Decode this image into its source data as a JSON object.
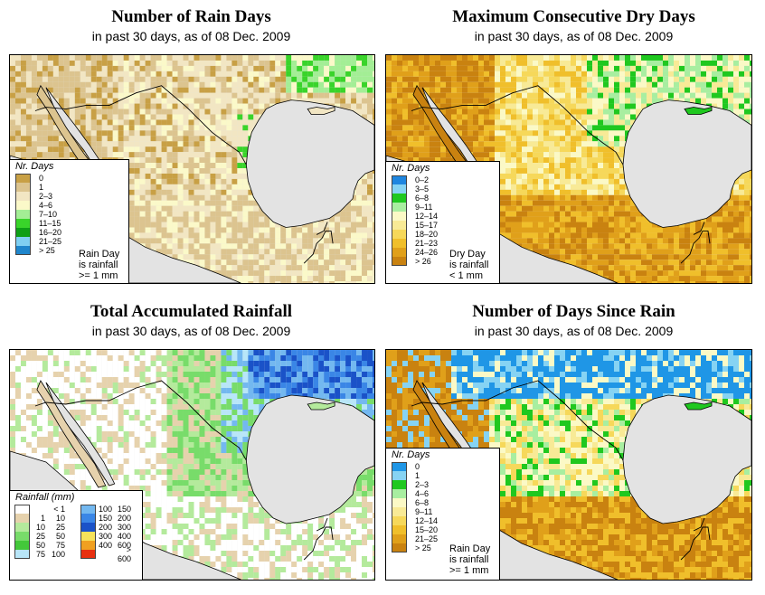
{
  "panels": [
    {
      "title": "Number of Rain Days",
      "subtitle": "in past 30 days, as of  08 Dec. 2009",
      "legend_title": "Nr. Days",
      "legend": [
        {
          "label": "0",
          "color": "#c8a045"
        },
        {
          "label": "1",
          "color": "#dcc48f"
        },
        {
          "label": "2–3",
          "color": "#f2e6c3"
        },
        {
          "label": "4–6",
          "color": "#fbf9c9"
        },
        {
          "label": "7–10",
          "color": "#a3ee95"
        },
        {
          "label": "11–15",
          "color": "#39d42a"
        },
        {
          "label": "16–20",
          "color": "#0e9f16"
        },
        {
          "label": "21–25",
          "color": "#7fd0f2"
        },
        {
          "label": "> 25",
          "color": "#1f86cc"
        }
      ],
      "note": [
        "Rain Day",
        "is rainfall",
        ">= 1 mm"
      ]
    },
    {
      "title": "Maximum Consecutive Dry Days",
      "subtitle": "in past 30 days, as of  08 Dec. 2009",
      "legend_title": "Nr. Days",
      "legend": [
        {
          "label": "0–2",
          "color": "#1f86e0"
        },
        {
          "label": "3–5",
          "color": "#86d3f3"
        },
        {
          "label": "6–8",
          "color": "#1fc81f"
        },
        {
          "label": "9–11",
          "color": "#a8eea0"
        },
        {
          "label": "12–14",
          "color": "#fbf9c6"
        },
        {
          "label": "15–17",
          "color": "#f8ea96"
        },
        {
          "label": "18–20",
          "color": "#f6d85a"
        },
        {
          "label": "21–23",
          "color": "#f0bf2b"
        },
        {
          "label": "24–26",
          "color": "#e0a01a"
        },
        {
          "label": "> 26",
          "color": "#c98210"
        }
      ],
      "note": [
        "Dry Day",
        "is rainfall",
        "< 1 mm"
      ]
    },
    {
      "title": "Total Accumulated Rainfall",
      "subtitle": "in past 30 days, as of  08 Dec. 2009",
      "legend_title": "Rainfall (mm)",
      "legend": [
        {
          "lo": "",
          "hi": "< 1",
          "color": "#ffffff"
        },
        {
          "lo": "1",
          "hi": "10",
          "color": "#e6d2ad"
        },
        {
          "lo": "10",
          "hi": "25",
          "color": "#b4ea9c"
        },
        {
          "lo": "25",
          "hi": "50",
          "color": "#78dc6a"
        },
        {
          "lo": "50",
          "hi": "75",
          "color": "#43c83a"
        },
        {
          "lo": "75",
          "hi": "100",
          "color": "#b8e6f8"
        },
        {
          "lo": "100",
          "hi": "150",
          "color": "#73b8f0"
        },
        {
          "lo": "150",
          "hi": "200",
          "color": "#3a86e6"
        },
        {
          "lo": "200",
          "hi": "300",
          "color": "#1a52c8"
        },
        {
          "lo": "300",
          "hi": "400",
          "color": "#f6e25a"
        },
        {
          "lo": "400",
          "hi": "600",
          "color": "#f0a020"
        },
        {
          "lo": "",
          "hi": "> 600",
          "color": "#e83010"
        }
      ]
    },
    {
      "title": "Number of Days Since Rain",
      "subtitle": "in past 30 days, as of  08 Dec. 2009",
      "legend_title": "Nr. Days",
      "legend": [
        {
          "label": "0",
          "color": "#1f96e6"
        },
        {
          "label": "1",
          "color": "#86d3f3"
        },
        {
          "label": "2–3",
          "color": "#1fc81f"
        },
        {
          "label": "4–6",
          "color": "#a8eea0"
        },
        {
          "label": "6–8",
          "color": "#fbf9c6"
        },
        {
          "label": "9–11",
          "color": "#f8ea96"
        },
        {
          "label": "12–14",
          "color": "#f6d85a"
        },
        {
          "label": "15–20",
          "color": "#f0bf2b"
        },
        {
          "label": "21–25",
          "color": "#e0a01a"
        },
        {
          "label": "> 25",
          "color": "#c98210"
        }
      ],
      "note": [
        "Rain Day",
        "is rainfall",
        ">= 1 mm"
      ]
    }
  ],
  "colors": {
    "ocean": "#e3e3e3",
    "border": "#000000"
  }
}
